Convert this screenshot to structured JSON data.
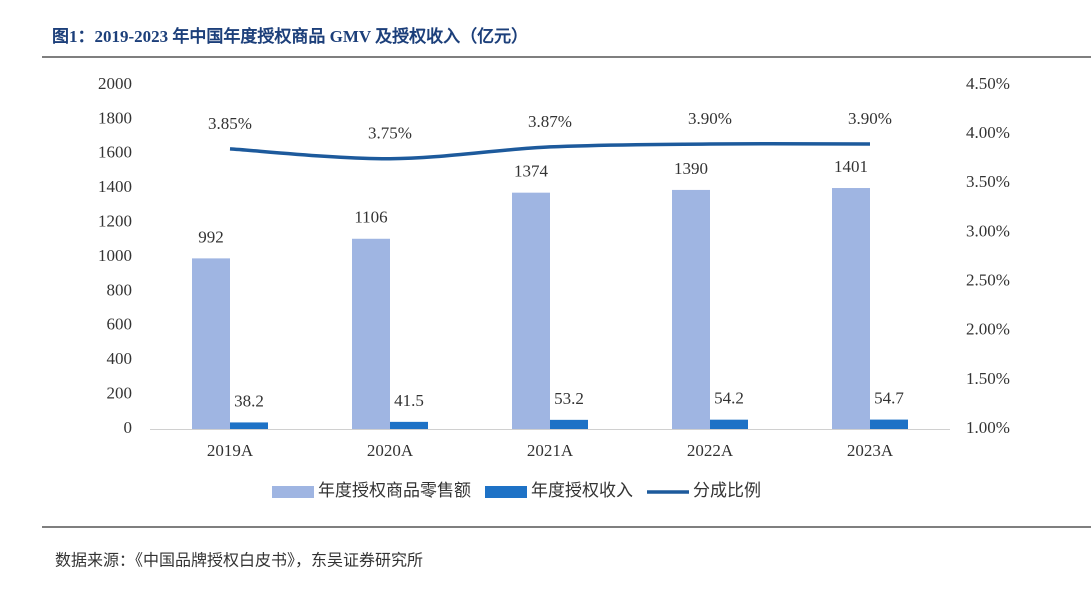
{
  "chart_data": {
    "type": "bar-line",
    "title": "图1：2019-2023 年中国年度授权商品 GMV 及授权收入（亿元）",
    "categories": [
      "2019A",
      "2020A",
      "2021A",
      "2022A",
      "2023A"
    ],
    "series": [
      {
        "name": "年度授权商品零售额",
        "type": "bar",
        "color": "#9fb5e2",
        "values": [
          992,
          1106,
          1374,
          1390,
          1401
        ]
      },
      {
        "name": "年度授权收入",
        "type": "bar",
        "color": "#1e72c6",
        "values": [
          38.2,
          41.5,
          53.2,
          54.2,
          54.7
        ]
      },
      {
        "name": "分成比例",
        "type": "line",
        "axis": "y2",
        "color": "#1d5a9c",
        "values": [
          3.85,
          3.75,
          3.87,
          3.9,
          3.9
        ],
        "value_labels": [
          "3.85%",
          "3.75%",
          "3.87%",
          "3.90%",
          "3.90%"
        ]
      }
    ],
    "ylim": [
      0,
      2000
    ],
    "yticks": [
      0,
      200,
      400,
      600,
      800,
      1000,
      1200,
      1400,
      1600,
      1800,
      2000
    ],
    "y2lim": [
      1,
      4.5
    ],
    "y2ticks": [
      {
        "value": 1,
        "label": "1.00%"
      },
      {
        "value": 1.5,
        "label": "1.50%"
      },
      {
        "value": 2,
        "label": "2.00%"
      },
      {
        "value": 2.5,
        "label": "2.50%"
      },
      {
        "value": 3,
        "label": "3.00%"
      },
      {
        "value": 3.5,
        "label": "3.50%"
      },
      {
        "value": 4,
        "label": "4.00%"
      },
      {
        "value": 4.5,
        "label": "4.50%"
      }
    ],
    "legend": "bottom",
    "source": "数据来源：《中国品牌授权白皮书》，东吴证券研究所"
  }
}
